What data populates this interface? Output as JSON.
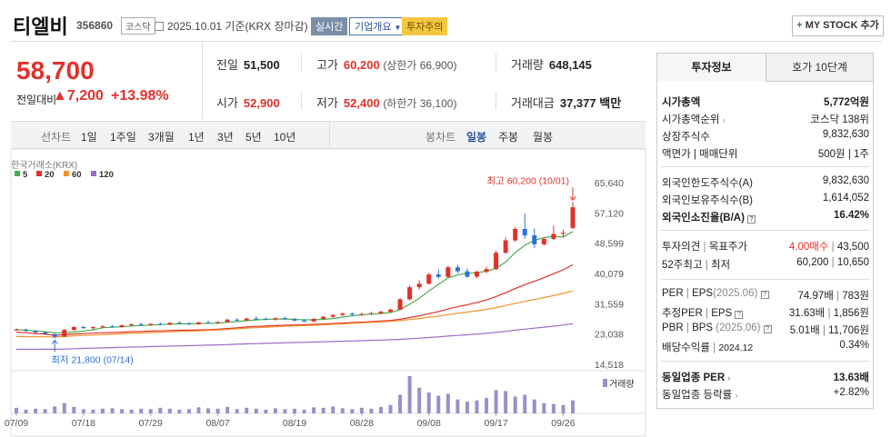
{
  "header": {
    "name": "티엘비",
    "code": "356860",
    "market": "코스닥",
    "date": "2025.10.01",
    "basis": "기준(KRX 장마감)",
    "realtime_label": "실시간",
    "company_label": "기업개요",
    "caution_label": "투자주의",
    "mystock_label": "MY STOCK 추가"
  },
  "price": {
    "current": "58,700",
    "change_label": "전일대비",
    "change_amount": "7,200",
    "change_rate": "+13.98%",
    "prev_close_label": "전일",
    "prev_close": "51,500",
    "open_label": "시가",
    "open": "52,900",
    "high_label": "고가",
    "high": "60,200",
    "upper_limit": "(상한가 66,900)",
    "low_label": "저가",
    "low": "52,400",
    "lower_limit": "(하한가 36,100)",
    "volume_label": "거래량",
    "volume": "648,145",
    "value_label": "거래대금",
    "value": "37,377",
    "value_unit": "백만"
  },
  "periods": {
    "line_label": "선차트",
    "line": [
      "1일",
      "1주일",
      "3개월",
      "1년",
      "3년",
      "5년",
      "10년"
    ],
    "candle_label": "봉차트",
    "candle": [
      "일봉",
      "주봉",
      "월봉"
    ],
    "candle_active": "일봉"
  },
  "chart_data": {
    "type": "candlestick",
    "source": "한국거래소(KRX)",
    "legend": [
      {
        "name": "5",
        "color": "#47b04b"
      },
      {
        "name": "20",
        "color": "#e1312b"
      },
      {
        "name": "60",
        "color": "#f0922b"
      },
      {
        "name": "120",
        "color": "#9a6bc9"
      }
    ],
    "y_ticks": [
      "65,640",
      "57,120",
      "48,599",
      "40,079",
      "31,559",
      "23,038",
      "14,518"
    ],
    "y_tick_values": [
      65640,
      57120,
      48599,
      40079,
      31559,
      23038,
      14518
    ],
    "ylim": [
      14518,
      65640
    ],
    "x_labels": [
      "07/09",
      "07/18",
      "07/29",
      "08/07",
      "08/19",
      "08/28",
      "09/08",
      "09/17",
      "09/26"
    ],
    "x_label_index": [
      0,
      7,
      14,
      21,
      29,
      36,
      43,
      50,
      57
    ],
    "high_annotation": "최고 60,200 (10/01)",
    "low_annotation": "최저 21,800 (07/14)",
    "volume_label": "거래량",
    "candles": [
      [
        24200,
        24600,
        23900,
        24300
      ],
      [
        24300,
        24500,
        23700,
        23900
      ],
      [
        23900,
        24200,
        23300,
        23500
      ],
      [
        23500,
        23800,
        22900,
        23100
      ],
      [
        23000,
        23200,
        21800,
        22300
      ],
      [
        22300,
        24500,
        22200,
        24200
      ],
      [
        24200,
        25200,
        24000,
        25000
      ],
      [
        25000,
        25400,
        24500,
        24700
      ],
      [
        24700,
        25200,
        24300,
        25000
      ],
      [
        25000,
        25500,
        24700,
        25200
      ],
      [
        25200,
        25600,
        24900,
        25000
      ],
      [
        25000,
        25700,
        24800,
        25500
      ],
      [
        25500,
        26000,
        25200,
        25800
      ],
      [
        25800,
        26200,
        25400,
        25600
      ],
      [
        25600,
        26100,
        25300,
        25900
      ],
      [
        25900,
        26300,
        25500,
        25700
      ],
      [
        25700,
        26400,
        25500,
        26200
      ],
      [
        26200,
        26600,
        25800,
        26000
      ],
      [
        26000,
        26400,
        25600,
        25800
      ],
      [
        25800,
        26500,
        25600,
        26300
      ],
      [
        26300,
        26800,
        25900,
        26100
      ],
      [
        26100,
        26600,
        25800,
        26400
      ],
      [
        26400,
        27300,
        26200,
        27100
      ],
      [
        27100,
        27500,
        26600,
        26900
      ],
      [
        26900,
        27600,
        26700,
        27400
      ],
      [
        27400,
        28000,
        27100,
        27300
      ],
      [
        27300,
        27800,
        26900,
        27100
      ],
      [
        27100,
        27700,
        26800,
        27500
      ],
      [
        27500,
        27900,
        27000,
        27200
      ],
      [
        27200,
        27600,
        26700,
        26800
      ],
      [
        26800,
        27300,
        26400,
        26600
      ],
      [
        26600,
        27500,
        26400,
        27300
      ],
      [
        27300,
        28100,
        27100,
        27900
      ],
      [
        27900,
        28600,
        27600,
        28400
      ],
      [
        28400,
        29200,
        28100,
        28800
      ],
      [
        28800,
        29100,
        28300,
        28500
      ],
      [
        28500,
        29000,
        28100,
        28700
      ],
      [
        28700,
        29300,
        28400,
        28900
      ],
      [
        28900,
        29600,
        28600,
        29300
      ],
      [
        29300,
        30200,
        29100,
        29900
      ],
      [
        29900,
        33200,
        29700,
        32800
      ],
      [
        32800,
        36800,
        32500,
        36200
      ],
      [
        36200,
        38100,
        35500,
        37200
      ],
      [
        37200,
        40300,
        36900,
        39800
      ],
      [
        39800,
        41200,
        38600,
        39100
      ],
      [
        39100,
        42300,
        38800,
        41800
      ],
      [
        41800,
        42600,
        40100,
        40700
      ],
      [
        40700,
        41500,
        38800,
        39200
      ],
      [
        39200,
        40900,
        38700,
        40600
      ],
      [
        40600,
        42000,
        40100,
        41300
      ],
      [
        41300,
        46500,
        41000,
        45900
      ],
      [
        45900,
        50200,
        45600,
        49400
      ],
      [
        49400,
        53200,
        49000,
        52600
      ],
      [
        52600,
        56900,
        49800,
        50800
      ],
      [
        50800,
        52700,
        47200,
        48300
      ],
      [
        48300,
        50300,
        47900,
        49800
      ],
      [
        49800,
        53500,
        49500,
        51200
      ],
      [
        51200,
        52400,
        50300,
        51500
      ],
      [
        52900,
        60200,
        52400,
        58700
      ]
    ],
    "volumes": [
      12,
      8,
      10,
      9,
      15,
      22,
      14,
      9,
      8,
      10,
      11,
      9,
      8,
      10,
      9,
      12,
      10,
      8,
      9,
      13,
      11,
      10,
      14,
      9,
      12,
      10,
      8,
      11,
      9,
      10,
      8,
      13,
      12,
      15,
      11,
      9,
      12,
      10,
      14,
      18,
      40,
      80,
      55,
      45,
      38,
      42,
      30,
      25,
      28,
      33,
      50,
      48,
      36,
      40,
      30,
      22,
      20,
      18,
      28
    ]
  },
  "right_panel": {
    "tab_info": "투자정보",
    "tab_hoga": "호가 10단계",
    "market_cap_label": "시가총액",
    "market_cap": "5,772억원",
    "cap_rank_label": "시가총액순위",
    "cap_rank": "코스닥 138위",
    "shares_label": "상장주식수",
    "shares": "9,832,630",
    "par_label": "액면가 | 매매단위",
    "par": "500원 | 1주",
    "foreign_limit_label": "외국인한도주식수(A)",
    "foreign_limit": "9,832,630",
    "foreign_hold_label": "외국인보유주식수(B)",
    "foreign_hold": "1,614,052",
    "foreign_ratio_label": "외국인소진율(B/A)",
    "foreign_ratio": "16.42%",
    "opinion_label": "투자의견",
    "target_label": "목표주가",
    "opinion": "4.00매수",
    "target": "43,500",
    "w52_label": "52주최고",
    "w52_low_label": "최저",
    "w52_high": "60,200",
    "w52_low": "10,650",
    "per_label": "PER",
    "eps_label": "EPS",
    "per_period": "(2025.06)",
    "per": "74.97배",
    "eps": "783원",
    "est_per_label": "추정PER",
    "est_eps_label": "EPS",
    "est_per": "31.63배",
    "est_eps": "1,856원",
    "pbr_label": "PBR",
    "bps_label": "BPS",
    "pbr_period": "(2025.06)",
    "pbr": "5.01배",
    "bps": "11,706원",
    "div_label": "배당수익률",
    "div_period": "2024.12",
    "div": "0.34%",
    "ind_per_label": "동일업종 PER",
    "ind_per": "13.63배",
    "ind_rate_label": "동일업종 등락률",
    "ind_rate": "+2.82%"
  }
}
